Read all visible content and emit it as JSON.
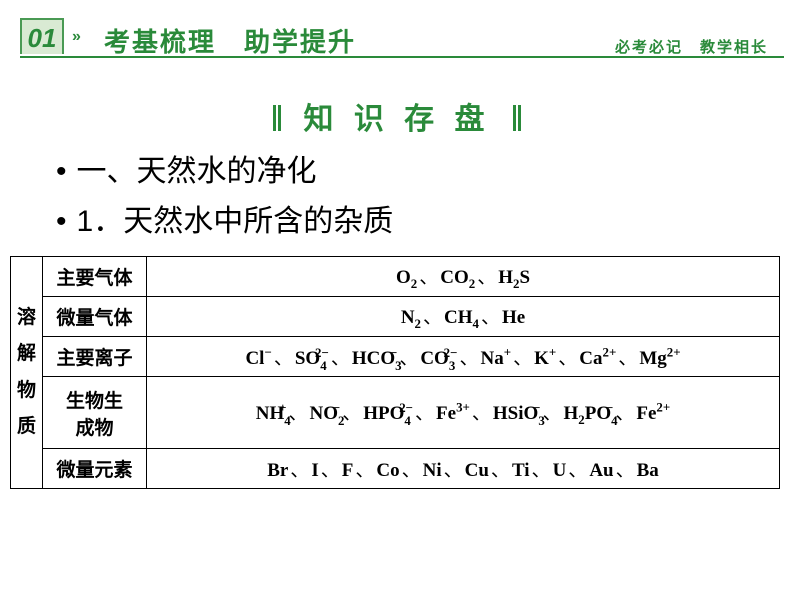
{
  "header": {
    "tab": "01",
    "main": "考基梳理　助学提升",
    "right": "必考必记　教学相长"
  },
  "title": "知 识 存 盘",
  "section_heading": "一、天然水的净化",
  "subsection": "1．天然水中所含的杂质",
  "table": {
    "vheader": "溶解物质",
    "rows": {
      "r1_label": "主要气体",
      "r2_label": "微量气体",
      "r3_label": "主要离子",
      "r4_label": "生物生成物",
      "r5_label": "微量元素"
    },
    "r5_items": [
      "Br",
      "I",
      "F",
      "Co",
      "Ni",
      "Cu",
      "Ti",
      "U",
      "Au",
      "Ba"
    ]
  },
  "colors": {
    "accent": "#2a8a3a",
    "tab_bg": "#d9ead3",
    "text": "#000000",
    "bg": "#ffffff"
  }
}
